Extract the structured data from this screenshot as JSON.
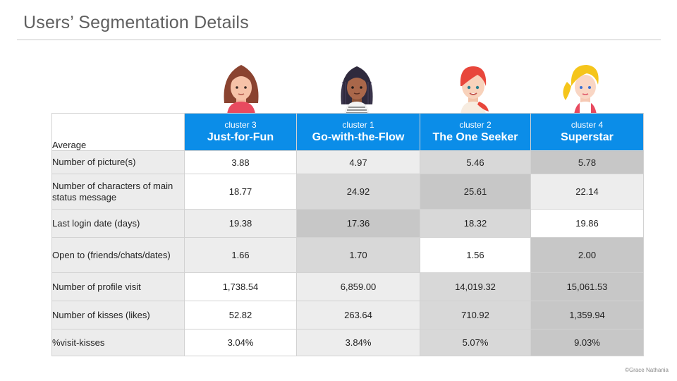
{
  "title": "Users’ Segmentation Details",
  "credit": "©Grace Nathania",
  "table": {
    "corner_label": "Average",
    "clusters": [
      {
        "num": "cluster 3",
        "name": "Just-for-Fun"
      },
      {
        "num": "cluster 1",
        "name": "Go-with-the-Flow"
      },
      {
        "num": "cluster 2",
        "name": "The One Seeker"
      },
      {
        "num": "cluster 4",
        "name": "Superstar"
      }
    ],
    "rows": [
      {
        "label": "Number of picture(s)",
        "values": [
          "3.88",
          "4.97",
          "5.46",
          "5.78"
        ]
      },
      {
        "label": "Number of characters of main status message",
        "values": [
          "18.77",
          "24.92",
          "25.61",
          "22.14"
        ]
      },
      {
        "label": "Last login date (days)",
        "values": [
          "19.38",
          "17.36",
          "18.32",
          "19.86"
        ]
      },
      {
        "label": "Open to (friends/chats/dates)",
        "values": [
          "1.66",
          "1.70",
          "1.56",
          "2.00"
        ]
      },
      {
        "label": "Number of profile visit",
        "values": [
          "1,738.54",
          "6,859.00",
          "14,019.32",
          "15,061.53"
        ]
      },
      {
        "label": "Number of kisses (likes)",
        "values": [
          "52.82",
          "263.64",
          "710.92",
          "1,359.94"
        ]
      },
      {
        "label": "%visit-kisses",
        "values": [
          "3.04%",
          "3.84%",
          "5.07%",
          "9.03%"
        ]
      }
    ]
  },
  "avatars": [
    {
      "icon": "woman-brown-long-hair-avatar-icon",
      "hair": "#8a4330",
      "top": "#e84a5f"
    },
    {
      "icon": "woman-braids-avatar-icon",
      "hair": "#2f2a3d",
      "top": "#f3f3f3"
    },
    {
      "icon": "woman-red-hair-avatar-icon",
      "hair": "#e8463b",
      "top": "#f7ece0"
    },
    {
      "icon": "woman-blonde-ponytail-avatar-icon",
      "hair": "#f5c51b",
      "top": "#e84a5f"
    }
  ]
}
